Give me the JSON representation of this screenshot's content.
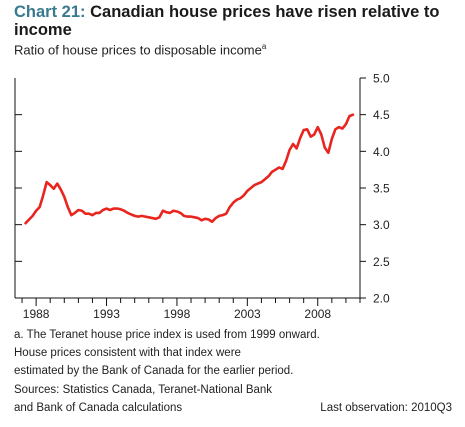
{
  "header": {
    "chart_number": "Chart 21:",
    "title": "Canadian house prices have risen relative to income",
    "subtitle": "Ratio of house prices to disposable income",
    "subtitle_sup": "a"
  },
  "footnotes": {
    "lines": [
      "a. The Teranet house price index is used from 1999 onward.",
      "House prices consistent with that index were",
      "estimated by the Bank of Canada for the earlier period.",
      "Sources: Statistics Canada, Teranet-National Bank",
      "and Bank of Canada calculations"
    ],
    "last_observation": "Last observation: 2010Q3"
  },
  "chart_data": {
    "type": "line",
    "title": "Canadian house prices have risen relative to income",
    "subtitle": "Ratio of house prices to disposable income",
    "xlabel": "",
    "ylabel": "",
    "xlim": [
      1986.5,
      2011
    ],
    "ylim": [
      2.0,
      5.0
    ],
    "x_ticks": [
      1988,
      1993,
      1998,
      2003,
      2008
    ],
    "y_ticks": [
      2.0,
      2.5,
      3.0,
      3.5,
      4.0,
      4.5,
      5.0
    ],
    "y_axis_position": "right",
    "grid": false,
    "line_color": "#e8261f",
    "series": [
      {
        "x": [
          1987.25,
          1987.5,
          1987.75,
          1988.0,
          1988.25,
          1988.5,
          1988.75,
          1989.0,
          1989.25,
          1989.5,
          1989.75,
          1990.0,
          1990.25,
          1990.5,
          1990.75,
          1991.0,
          1991.25,
          1991.5,
          1991.75,
          1992.0,
          1992.25,
          1992.5,
          1992.75,
          1993.0,
          1993.25,
          1993.5,
          1993.75,
          1994.0,
          1994.25,
          1994.5,
          1994.75,
          1995.0,
          1995.25,
          1995.5,
          1995.75,
          1996.0,
          1996.25,
          1996.5,
          1996.75,
          1997.0,
          1997.25,
          1997.5,
          1997.75,
          1998.0,
          1998.25,
          1998.5,
          1998.75,
          1999.0,
          1999.25,
          1999.5,
          1999.75,
          2000.0,
          2000.25,
          2000.5,
          2000.75,
          2001.0,
          2001.25,
          2001.5,
          2001.75,
          2002.0,
          2002.25,
          2002.5,
          2002.75,
          2003.0,
          2003.25,
          2003.5,
          2003.75,
          2004.0,
          2004.25,
          2004.5,
          2004.75,
          2005.0,
          2005.25,
          2005.5,
          2005.75,
          2006.0,
          2006.25,
          2006.5,
          2006.75,
          2007.0,
          2007.25,
          2007.5,
          2007.75,
          2008.0,
          2008.25,
          2008.5,
          2008.75,
          2009.0,
          2009.25,
          2009.5,
          2009.75,
          2010.0,
          2010.25,
          2010.5
        ],
        "values": [
          3.02,
          3.07,
          3.12,
          3.19,
          3.24,
          3.4,
          3.58,
          3.54,
          3.49,
          3.56,
          3.48,
          3.38,
          3.24,
          3.13,
          3.16,
          3.2,
          3.19,
          3.15,
          3.15,
          3.13,
          3.16,
          3.16,
          3.2,
          3.22,
          3.2,
          3.22,
          3.22,
          3.21,
          3.19,
          3.16,
          3.14,
          3.12,
          3.11,
          3.12,
          3.11,
          3.1,
          3.09,
          3.08,
          3.1,
          3.19,
          3.17,
          3.16,
          3.19,
          3.18,
          3.16,
          3.12,
          3.11,
          3.11,
          3.1,
          3.09,
          3.06,
          3.08,
          3.07,
          3.04,
          3.09,
          3.12,
          3.13,
          3.15,
          3.24,
          3.3,
          3.34,
          3.36,
          3.4,
          3.46,
          3.5,
          3.54,
          3.56,
          3.58,
          3.62,
          3.66,
          3.72,
          3.75,
          3.78,
          3.76,
          3.87,
          4.02,
          4.1,
          4.04,
          4.18,
          4.29,
          4.3,
          4.2,
          4.23,
          4.33,
          4.23,
          4.05,
          3.98,
          4.17,
          4.3,
          4.33,
          4.31,
          4.37,
          4.48,
          4.5
        ]
      }
    ]
  }
}
